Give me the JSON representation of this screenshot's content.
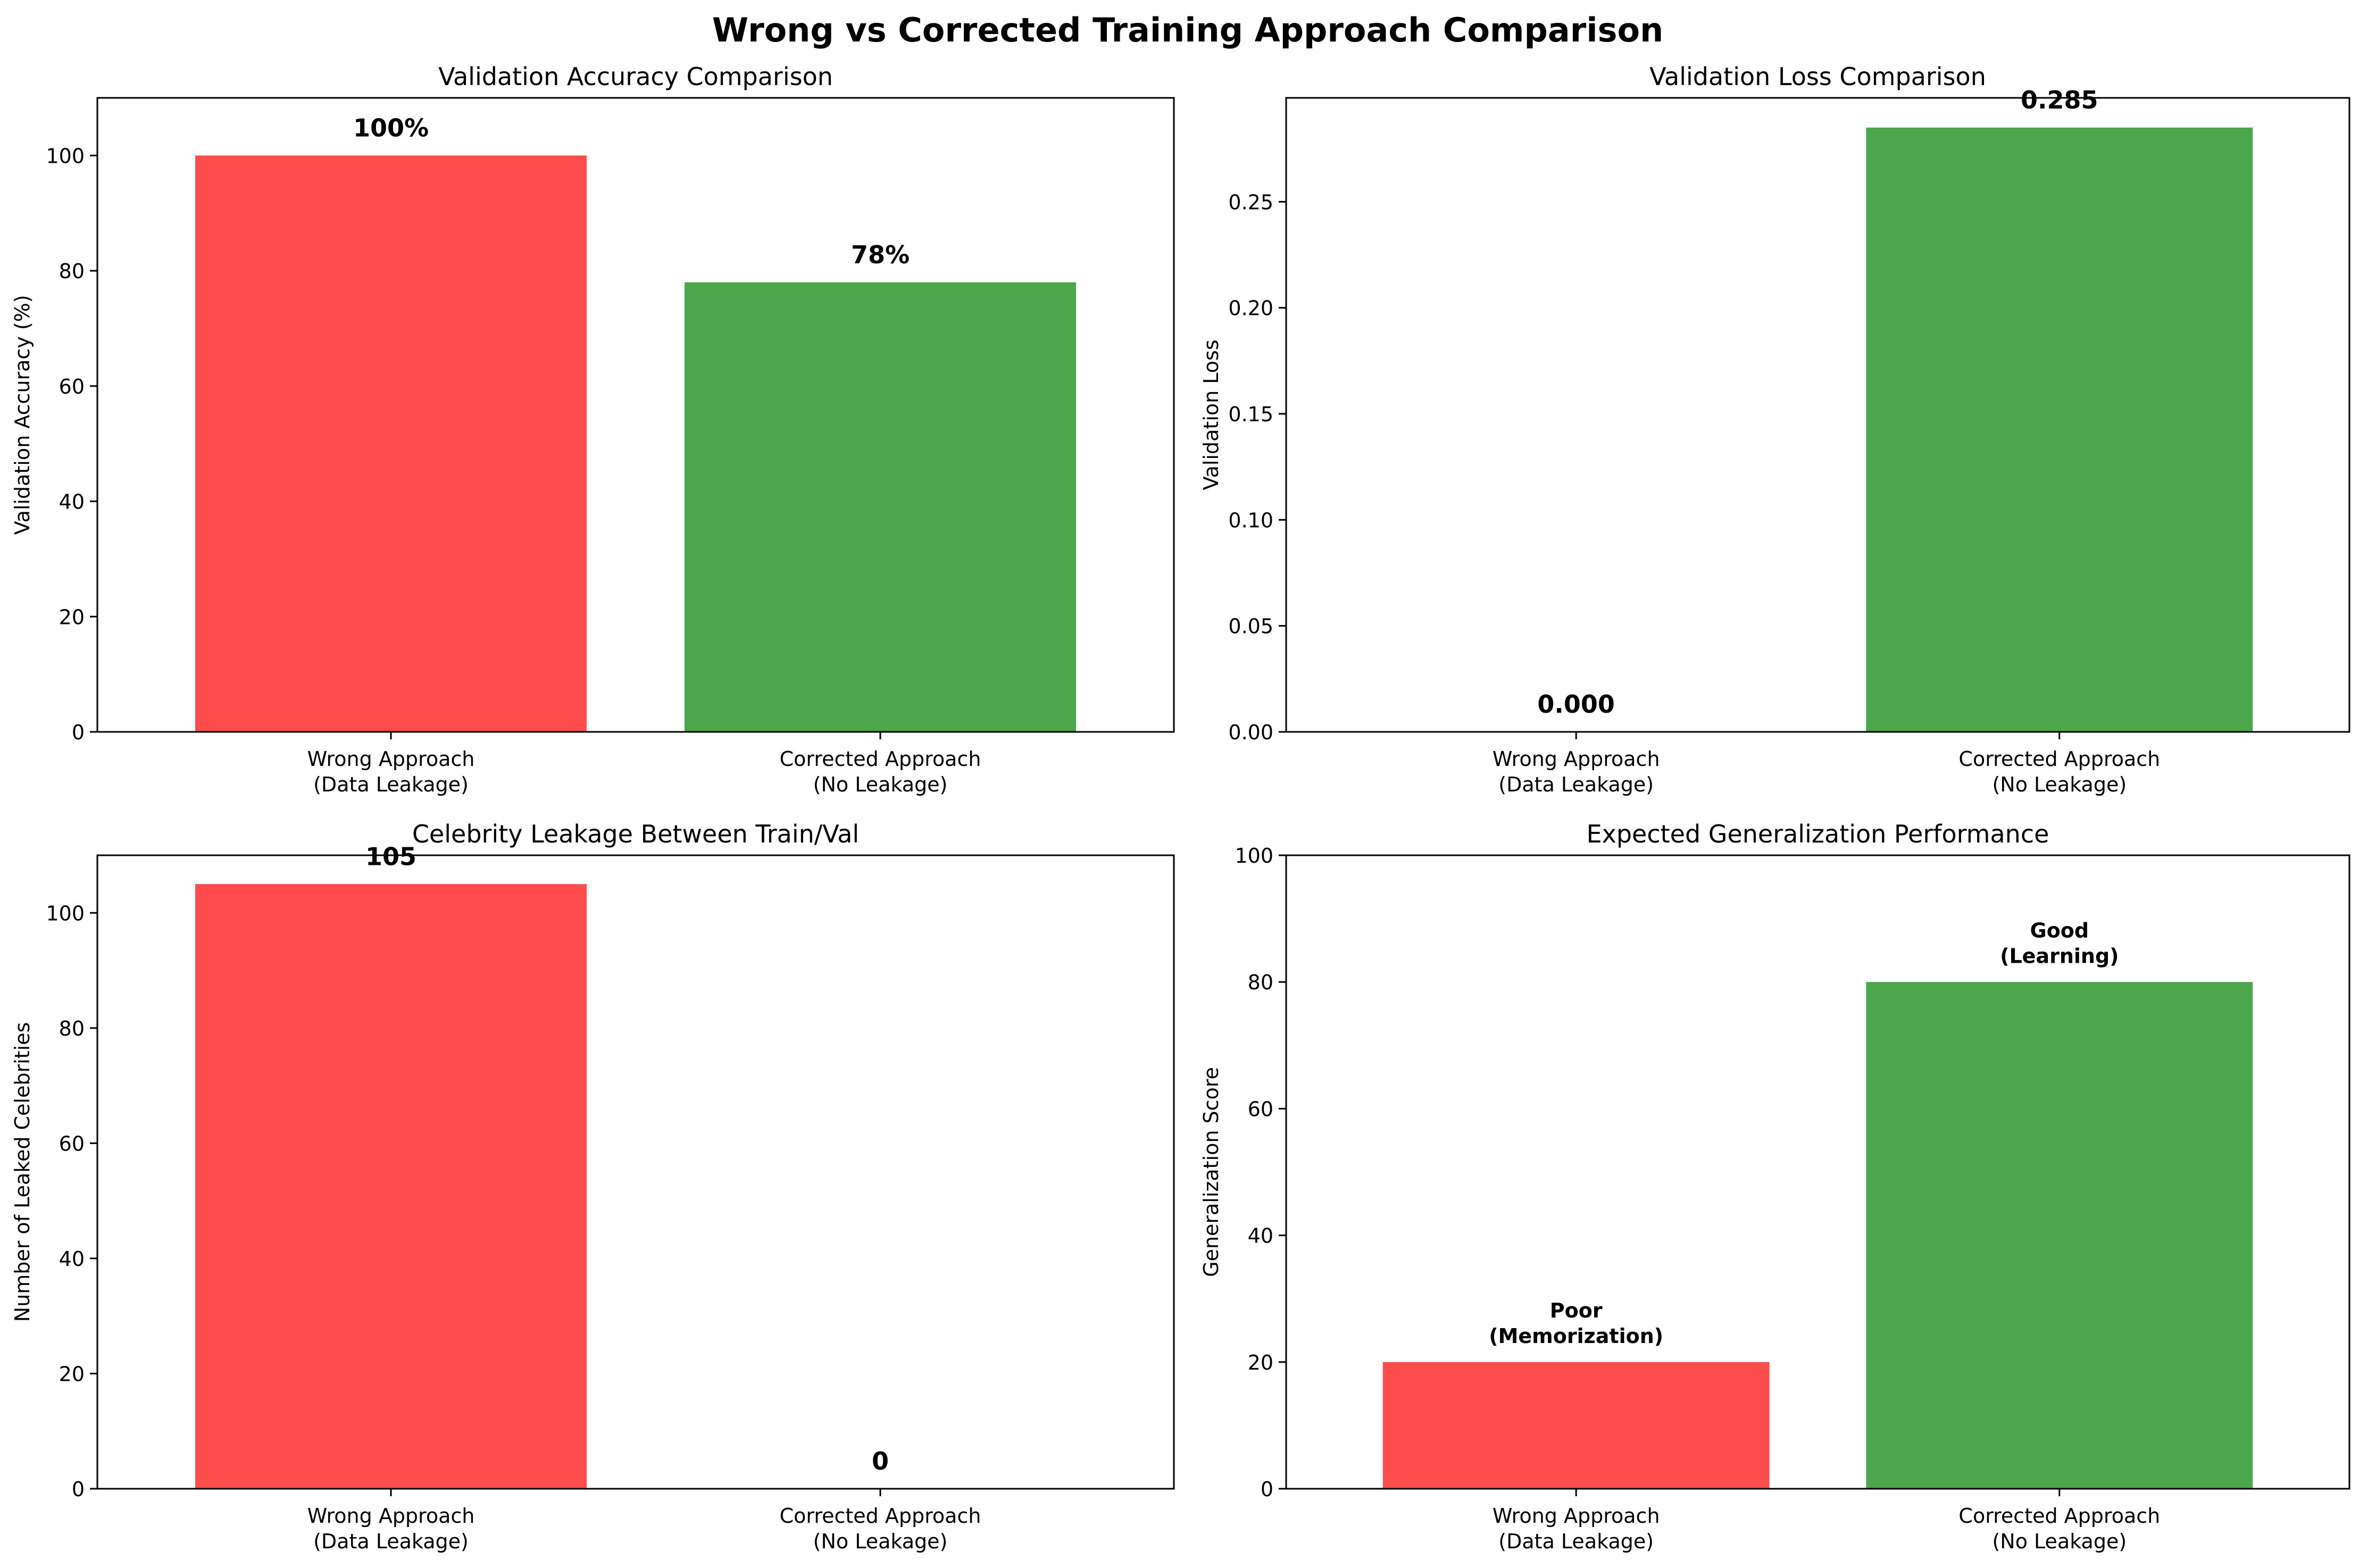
{
  "figure": {
    "title": "Wrong vs Corrected Training Approach Comparison"
  },
  "colors": {
    "wrong": "#ff4d4d",
    "corrected": "#4ca64c",
    "axis": "#000000"
  },
  "chart_data": [
    {
      "type": "bar",
      "title": "Validation Accuracy Comparison",
      "xlabel": "",
      "ylabel": "Validation Accuracy (%)",
      "categories": [
        [
          "Wrong Approach",
          "(Data Leakage)"
        ],
        [
          "Corrected Approach",
          "(No Leakage)"
        ]
      ],
      "values": [
        100,
        78
      ],
      "data_labels": [
        [
          "100%"
        ],
        [
          "78%"
        ]
      ],
      "ylim": [
        0,
        110
      ],
      "yticks": [
        0,
        20,
        40,
        60,
        80,
        100
      ],
      "ytick_labels": [
        "0",
        "20",
        "40",
        "60",
        "80",
        "100"
      ],
      "bar_colors": [
        "#ff4d4d",
        "#4ca64c"
      ],
      "grid": false
    },
    {
      "type": "bar",
      "title": "Validation Loss Comparison",
      "xlabel": "",
      "ylabel": "Validation Loss",
      "categories": [
        [
          "Wrong Approach",
          "(Data Leakage)"
        ],
        [
          "Corrected Approach",
          "(No Leakage)"
        ]
      ],
      "values": [
        0.0,
        0.285
      ],
      "data_labels": [
        [
          "0.000"
        ],
        [
          "0.285"
        ]
      ],
      "ylim": [
        0,
        0.299
      ],
      "yticks": [
        0,
        0.05,
        0.1,
        0.15,
        0.2,
        0.25
      ],
      "ytick_labels": [
        "0.00",
        "0.05",
        "0.10",
        "0.15",
        "0.20",
        "0.25"
      ],
      "bar_colors": [
        "#ff4d4d",
        "#4ca64c"
      ],
      "grid": false
    },
    {
      "type": "bar",
      "title": "Celebrity Leakage Between Train/Val",
      "xlabel": "",
      "ylabel": "Number of Leaked Celebrities",
      "categories": [
        [
          "Wrong Approach",
          "(Data Leakage)"
        ],
        [
          "Corrected Approach",
          "(No Leakage)"
        ]
      ],
      "values": [
        105,
        0
      ],
      "data_labels": [
        [
          "105"
        ],
        [
          "0"
        ]
      ],
      "ylim": [
        0,
        110
      ],
      "yticks": [
        0,
        20,
        40,
        60,
        80,
        100
      ],
      "ytick_labels": [
        "0",
        "20",
        "40",
        "60",
        "80",
        "100"
      ],
      "bar_colors": [
        "#ff4d4d",
        "#4ca64c"
      ],
      "grid": false
    },
    {
      "type": "bar",
      "title": "Expected Generalization Performance",
      "xlabel": "",
      "ylabel": "Generalization Score",
      "categories": [
        [
          "Wrong Approach",
          "(Data Leakage)"
        ],
        [
          "Corrected Approach",
          "(No Leakage)"
        ]
      ],
      "values": [
        20,
        80
      ],
      "data_labels": [
        [
          "Poor",
          "(Memorization)"
        ],
        [
          "Good",
          "(Learning)"
        ]
      ],
      "ylim": [
        0,
        100
      ],
      "yticks": [
        0,
        20,
        40,
        60,
        80,
        100
      ],
      "ytick_labels": [
        "0",
        "20",
        "40",
        "60",
        "80",
        "100"
      ],
      "bar_colors": [
        "#ff4d4d",
        "#4ca64c"
      ],
      "grid": false
    }
  ]
}
